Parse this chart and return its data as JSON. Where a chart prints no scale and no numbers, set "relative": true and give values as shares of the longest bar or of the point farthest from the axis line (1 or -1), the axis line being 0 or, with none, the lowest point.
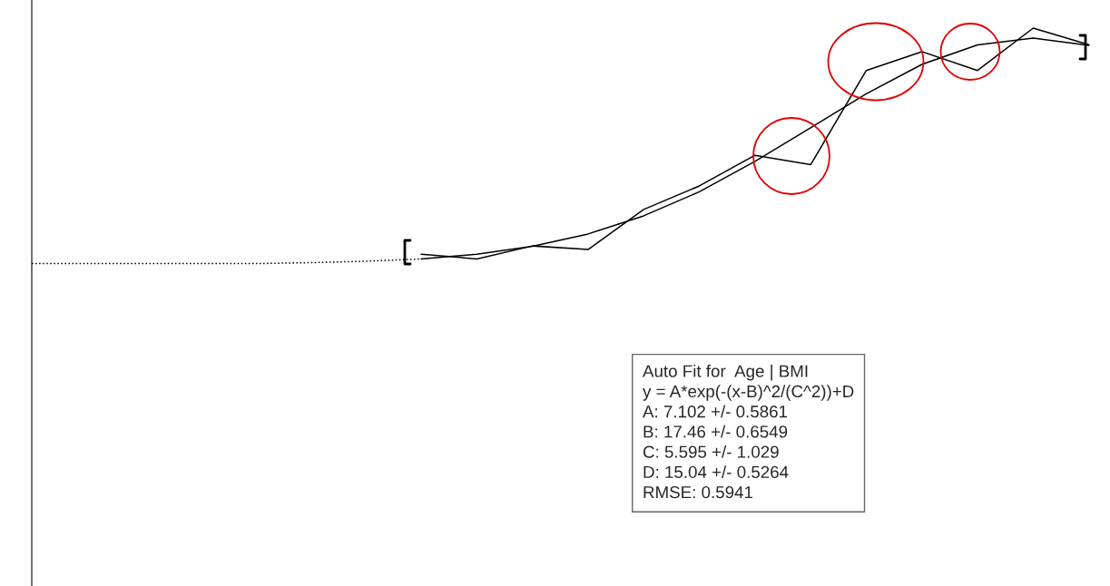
{
  "chart_data": {
    "type": "line",
    "relative": true,
    "categories": [
      null,
      null,
      null,
      null,
      null,
      null,
      null,
      null,
      null,
      null,
      null,
      null,
      null,
      null,
      null,
      null,
      null,
      null,
      null,
      null
    ],
    "series": [
      {
        "color": "#000000",
        "line_style": "dotted",
        "values": [
          0,
          0,
          0,
          0,
          0,
          0.004,
          0.01,
          0.02,
          null,
          null,
          null,
          null,
          null,
          null,
          null,
          null,
          null,
          null,
          null,
          null
        ]
      },
      {
        "color": "#000000",
        "line_style": "solid",
        "values": [
          null,
          null,
          null,
          null,
          null,
          null,
          null,
          0.02,
          0.04,
          0.074,
          0.126,
          0.203,
          0.305,
          0.434,
          0.577,
          0.721,
          0.846,
          0.929,
          0.958,
          0.927
        ]
      },
      {
        "color": "#000000",
        "line_style": "solid",
        "values": [
          null,
          null,
          null,
          null,
          null,
          null,
          null,
          0.04,
          0.02,
          0.075,
          0.06,
          0.23,
          0.33,
          0.46,
          0.42,
          0.82,
          0.9,
          0.82,
          1,
          0.93
        ]
      }
    ],
    "annotations": [
      "Auto Fit for  Age | BMI\ny = A*exp(-(x-B)^2/(C^2))+D\nA: 7.102 +/- 0.5861\nB: 17.46 +/- 0.6549\nC: 5.595 +/- 1.029\nD: 15.04 +/- 0.5264\nRMSE: 0.5941"
    ]
  }
}
